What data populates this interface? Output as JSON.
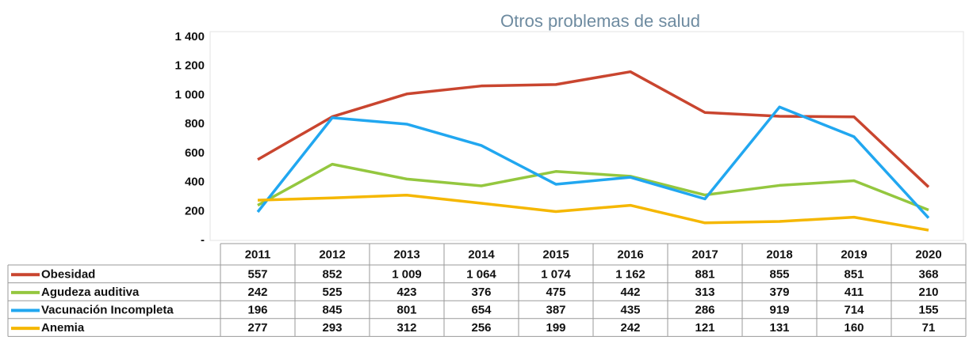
{
  "chart_data": {
    "type": "line",
    "title": "Otros problemas de salud",
    "categories": [
      "2011",
      "2012",
      "2013",
      "2014",
      "2015",
      "2016",
      "2017",
      "2018",
      "2019",
      "2020"
    ],
    "series": [
      {
        "name": "Obesidad",
        "color": "#c9452f",
        "values": [
          557,
          852,
          1009,
          1064,
          1074,
          1162,
          881,
          855,
          851,
          368
        ],
        "value_labels": [
          "557",
          "852",
          "1 009",
          "1 064",
          "1 074",
          "1 162",
          "881",
          "855",
          "851",
          "368"
        ]
      },
      {
        "name": "Agudeza auditiva",
        "color": "#94c73f",
        "values": [
          242,
          525,
          423,
          376,
          475,
          442,
          313,
          379,
          411,
          210
        ]
      },
      {
        "name": "Vacunación Incompleta",
        "color": "#21a7f0",
        "values": [
          196,
          845,
          801,
          654,
          387,
          435,
          286,
          919,
          714,
          155
        ]
      },
      {
        "name": "Anemia",
        "color": "#f5b700",
        "values": [
          277,
          293,
          312,
          256,
          199,
          242,
          121,
          131,
          160,
          71
        ]
      }
    ],
    "ylim": [
      0,
      1400
    ],
    "yticks": [
      {
        "value": 0,
        "label": "-"
      },
      200,
      400,
      600,
      800,
      {
        "value": 1000,
        "label": "1 000"
      },
      {
        "value": 1200,
        "label": "1 200"
      },
      {
        "value": 1400,
        "label": "1 400"
      }
    ],
    "grid": false
  }
}
